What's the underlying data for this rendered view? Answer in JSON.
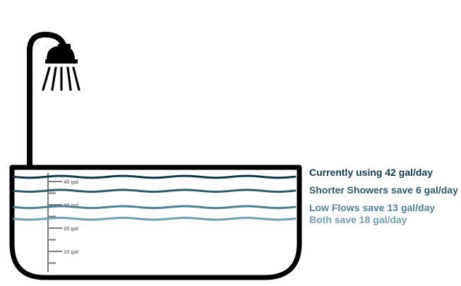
{
  "colors": {
    "outline": "#000000",
    "scale": "#7a7a7a",
    "current": "#0f3a4e",
    "shorter_showers": "#2f5a6c",
    "low_flows": "#4f7f95",
    "both": "#6f9fb4"
  },
  "icons": {
    "shower_head": "shower-head-icon",
    "bathtub": "bathtub-icon"
  },
  "scale": {
    "unit": "gal",
    "ticks": [
      {
        "value": 40,
        "label": "40 gal"
      },
      {
        "value": 30,
        "label": "30 gal"
      },
      {
        "value": 20,
        "label": "20 gal"
      },
      {
        "value": 10,
        "label": "10 gal"
      }
    ]
  },
  "levels": [
    {
      "id": "current",
      "gallons": 42,
      "label": "Currently using 42 gal/day"
    },
    {
      "id": "shorter_showers",
      "gallons": 36,
      "label": "Shorter Showers save 6 gal/day"
    },
    {
      "id": "low_flows",
      "gallons": 29,
      "label": "Low Flows save 13 gal/day"
    },
    {
      "id": "both",
      "gallons": 24,
      "label": "Both save 18 gal/day"
    }
  ]
}
